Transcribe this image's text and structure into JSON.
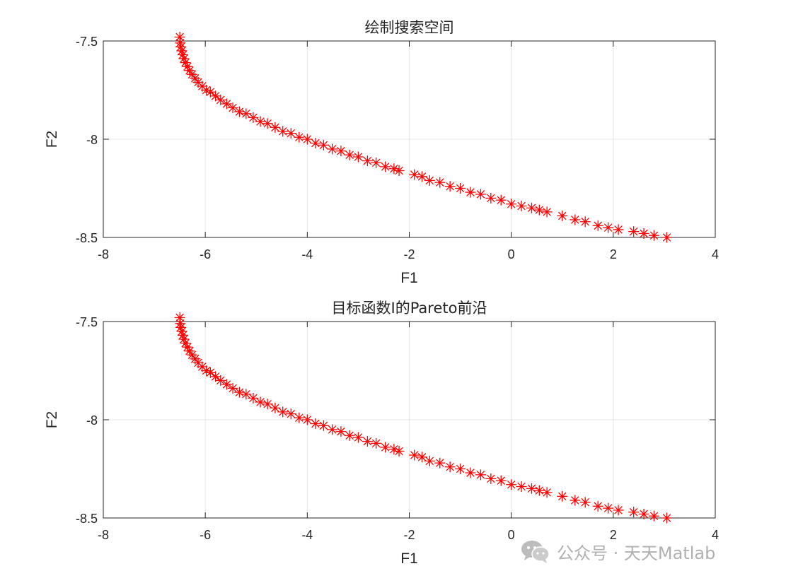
{
  "chart_data": [
    {
      "type": "scatter",
      "title": "绘制搜索空间",
      "xlabel": "F1",
      "ylabel": "F2",
      "xlim": [
        -8,
        4
      ],
      "ylim": [
        -8.5,
        -7.5
      ],
      "xticks": [
        -8,
        -6,
        -4,
        -2,
        0,
        2,
        4
      ],
      "yticks": [
        -7.5,
        -8,
        -8.5
      ],
      "xtick_labels": [
        "-8",
        "-6",
        "-4",
        "-2",
        "0",
        "2",
        "4"
      ],
      "ytick_labels": [
        "-7.5",
        "-8",
        "-8.5"
      ],
      "grid": true,
      "marker": "asterisk",
      "marker_color": "#ff0000",
      "points": [
        [
          -6.5,
          -7.48
        ],
        [
          -6.49,
          -7.51
        ],
        [
          -6.48,
          -7.53
        ],
        [
          -6.46,
          -7.55
        ],
        [
          -6.44,
          -7.57
        ],
        [
          -6.42,
          -7.59
        ],
        [
          -6.39,
          -7.61
        ],
        [
          -6.35,
          -7.63
        ],
        [
          -6.31,
          -7.65
        ],
        [
          -6.26,
          -7.67
        ],
        [
          -6.2,
          -7.69
        ],
        [
          -6.14,
          -7.71
        ],
        [
          -6.06,
          -7.73
        ],
        [
          -5.98,
          -7.75
        ],
        [
          -5.9,
          -7.76
        ],
        [
          -5.8,
          -7.78
        ],
        [
          -5.7,
          -7.8
        ],
        [
          -5.58,
          -7.82
        ],
        [
          -5.46,
          -7.84
        ],
        [
          -5.33,
          -7.86
        ],
        [
          -5.2,
          -7.87
        ],
        [
          -5.06,
          -7.89
        ],
        [
          -4.92,
          -7.91
        ],
        [
          -4.78,
          -7.92
        ],
        [
          -4.63,
          -7.94
        ],
        [
          -4.48,
          -7.96
        ],
        [
          -4.32,
          -7.97
        ],
        [
          -4.16,
          -7.99
        ],
        [
          -4.0,
          -8.0
        ],
        [
          -3.84,
          -8.02
        ],
        [
          -3.68,
          -8.03
        ],
        [
          -3.51,
          -8.05
        ],
        [
          -3.34,
          -8.06
        ],
        [
          -3.17,
          -8.08
        ],
        [
          -3.0,
          -8.09
        ],
        [
          -2.82,
          -8.11
        ],
        [
          -2.65,
          -8.12
        ],
        [
          -2.47,
          -8.14
        ],
        [
          -2.3,
          -8.15
        ],
        [
          -2.2,
          -8.16
        ],
        [
          -1.9,
          -8.18
        ],
        [
          -1.75,
          -8.19
        ],
        [
          -1.6,
          -8.21
        ],
        [
          -1.4,
          -8.22
        ],
        [
          -1.2,
          -8.24
        ],
        [
          -1.0,
          -8.25
        ],
        [
          -0.8,
          -8.27
        ],
        [
          -0.6,
          -8.28
        ],
        [
          -0.4,
          -8.3
        ],
        [
          -0.2,
          -8.31
        ],
        [
          0.0,
          -8.33
        ],
        [
          0.2,
          -8.34
        ],
        [
          0.4,
          -8.35
        ],
        [
          0.55,
          -8.36
        ],
        [
          0.7,
          -8.37
        ],
        [
          1.0,
          -8.39
        ],
        [
          1.25,
          -8.41
        ],
        [
          1.45,
          -8.42
        ],
        [
          1.7,
          -8.44
        ],
        [
          1.9,
          -8.45
        ],
        [
          2.1,
          -8.46
        ],
        [
          2.4,
          -8.47
        ],
        [
          2.6,
          -8.48
        ],
        [
          2.8,
          -8.49
        ],
        [
          3.05,
          -8.5
        ]
      ]
    },
    {
      "type": "scatter",
      "title": "目标函数I的Pareto前沿",
      "xlabel": "F1",
      "ylabel": "F2",
      "xlim": [
        -8,
        4
      ],
      "ylim": [
        -8.5,
        -7.5
      ],
      "xticks": [
        -8,
        -6,
        -4,
        -2,
        0,
        2,
        4
      ],
      "yticks": [
        -7.5,
        -8,
        -8.5
      ],
      "xtick_labels": [
        "-8",
        "-6",
        "-4",
        "-2",
        "0",
        "2",
        "4"
      ],
      "ytick_labels": [
        "-7.5",
        "-8",
        "-8.5"
      ],
      "grid": true,
      "marker": "asterisk",
      "marker_color": "#ff0000",
      "points": [
        [
          -6.5,
          -7.48
        ],
        [
          -6.49,
          -7.51
        ],
        [
          -6.48,
          -7.53
        ],
        [
          -6.46,
          -7.55
        ],
        [
          -6.44,
          -7.57
        ],
        [
          -6.42,
          -7.59
        ],
        [
          -6.39,
          -7.61
        ],
        [
          -6.35,
          -7.63
        ],
        [
          -6.31,
          -7.65
        ],
        [
          -6.26,
          -7.67
        ],
        [
          -6.2,
          -7.69
        ],
        [
          -6.14,
          -7.71
        ],
        [
          -6.06,
          -7.73
        ],
        [
          -5.98,
          -7.75
        ],
        [
          -5.9,
          -7.76
        ],
        [
          -5.8,
          -7.78
        ],
        [
          -5.7,
          -7.8
        ],
        [
          -5.58,
          -7.82
        ],
        [
          -5.46,
          -7.84
        ],
        [
          -5.33,
          -7.86
        ],
        [
          -5.2,
          -7.87
        ],
        [
          -5.06,
          -7.89
        ],
        [
          -4.92,
          -7.91
        ],
        [
          -4.78,
          -7.92
        ],
        [
          -4.63,
          -7.94
        ],
        [
          -4.48,
          -7.96
        ],
        [
          -4.32,
          -7.97
        ],
        [
          -4.16,
          -7.99
        ],
        [
          -4.0,
          -8.0
        ],
        [
          -3.84,
          -8.02
        ],
        [
          -3.68,
          -8.03
        ],
        [
          -3.51,
          -8.05
        ],
        [
          -3.34,
          -8.06
        ],
        [
          -3.17,
          -8.08
        ],
        [
          -3.0,
          -8.09
        ],
        [
          -2.82,
          -8.11
        ],
        [
          -2.65,
          -8.12
        ],
        [
          -2.47,
          -8.14
        ],
        [
          -2.3,
          -8.15
        ],
        [
          -2.2,
          -8.16
        ],
        [
          -1.9,
          -8.18
        ],
        [
          -1.75,
          -8.19
        ],
        [
          -1.6,
          -8.21
        ],
        [
          -1.4,
          -8.22
        ],
        [
          -1.2,
          -8.24
        ],
        [
          -1.0,
          -8.25
        ],
        [
          -0.8,
          -8.27
        ],
        [
          -0.6,
          -8.28
        ],
        [
          -0.4,
          -8.3
        ],
        [
          -0.2,
          -8.31
        ],
        [
          0.0,
          -8.33
        ],
        [
          0.2,
          -8.34
        ],
        [
          0.4,
          -8.35
        ],
        [
          0.55,
          -8.36
        ],
        [
          0.7,
          -8.37
        ],
        [
          1.0,
          -8.39
        ],
        [
          1.25,
          -8.41
        ],
        [
          1.45,
          -8.42
        ],
        [
          1.7,
          -8.44
        ],
        [
          1.9,
          -8.45
        ],
        [
          2.1,
          -8.46
        ],
        [
          2.4,
          -8.47
        ],
        [
          2.6,
          -8.48
        ],
        [
          2.8,
          -8.49
        ],
        [
          3.05,
          -8.5
        ]
      ]
    }
  ],
  "watermark": {
    "text": "公众号 · 天天Matlab",
    "icon": "wechat-icon",
    "color": "#a8a8a8"
  }
}
